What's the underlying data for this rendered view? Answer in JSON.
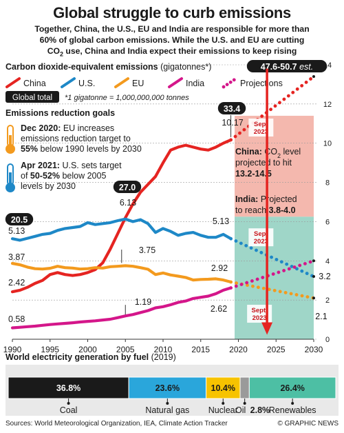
{
  "header": {
    "title": "Global struggle to curb emissions",
    "subtitle_l1": "Together, China, the U.S., EU and India are responsible for more than",
    "subtitle_l2": "60% of global carbon emissions. While the U.S. and EU are cutting",
    "subtitle_l3a": "CO",
    "subtitle_l3sub": "2",
    "subtitle_l3b": " use, China and India expect their emissions to keep rising"
  },
  "colors": {
    "china": "#e52421",
    "us": "#1e88c7",
    "eu": "#f39a1e",
    "india": "#d4168a",
    "china_band": "#f4b8ae",
    "india_band": "#9fd6c8",
    "coal": "#1a1a1a",
    "gas": "#2aa6db",
    "nuclear": "#f7c300",
    "oil": "#9a9a9a",
    "renew": "#4dbfa4"
  },
  "chart_data": [
    {
      "type": "line",
      "title": "Carbon dioxide-equivalent emissions",
      "title_unit": "(gigatonnes*)",
      "footnote": "*1 gigatonne = 1,000,000,000 tonnes",
      "global_total_label": "Global total",
      "xlim": [
        1990,
        2030
      ],
      "ylim": [
        0,
        14
      ],
      "x_ticks": [
        1990,
        1995,
        2000,
        2005,
        2010,
        2015,
        2020,
        2025,
        2030
      ],
      "y_ticks": [
        0,
        2,
        4,
        6,
        8,
        10,
        12,
        14
      ],
      "legend": {
        "placement": "top-left",
        "entries": [
          "China",
          "U.S.",
          "EU",
          "India",
          "Projections"
        ]
      },
      "series": [
        {
          "name": "China",
          "x": [
            1990,
            1991,
            1992,
            1993,
            1994,
            1995,
            1996,
            1997,
            1998,
            1999,
            2000,
            2001,
            2002,
            2003,
            2004,
            2005,
            2006,
            2007,
            2008,
            2009,
            2010,
            2011,
            2012,
            2013,
            2014,
            2015,
            2016,
            2017,
            2018,
            2019
          ],
          "values": [
            2.42,
            2.5,
            2.65,
            2.85,
            3.0,
            3.3,
            3.4,
            3.3,
            3.25,
            3.3,
            3.4,
            3.55,
            3.9,
            4.6,
            5.4,
            6.2,
            6.9,
            7.5,
            7.9,
            8.3,
            9.0,
            9.65,
            9.8,
            9.9,
            9.8,
            9.7,
            9.65,
            9.8,
            10.0,
            10.17
          ],
          "projection": {
            "x": [
              2019,
              2030
            ],
            "values": [
              10.17,
              13.4
            ]
          }
        },
        {
          "name": "U.S.",
          "x": [
            1990,
            1991,
            1992,
            1993,
            1994,
            1995,
            1996,
            1997,
            1998,
            1999,
            2000,
            2001,
            2002,
            2003,
            2004,
            2005,
            2006,
            2007,
            2008,
            2009,
            2010,
            2011,
            2012,
            2013,
            2014,
            2015,
            2016,
            2017,
            2018,
            2019
          ],
          "values": [
            5.13,
            5.05,
            5.15,
            5.25,
            5.35,
            5.4,
            5.55,
            5.65,
            5.7,
            5.75,
            5.95,
            5.85,
            5.9,
            5.95,
            6.05,
            6.13,
            6.0,
            6.1,
            5.9,
            5.45,
            5.65,
            5.5,
            5.3,
            5.4,
            5.45,
            5.3,
            5.2,
            5.2,
            5.35,
            5.13
          ],
          "projection": {
            "x": [
              2019,
              2030
            ],
            "values": [
              5.13,
              3.2
            ]
          }
        },
        {
          "name": "EU",
          "x": [
            1990,
            1991,
            1992,
            1993,
            1994,
            1995,
            1996,
            1997,
            1998,
            1999,
            2000,
            2001,
            2002,
            2003,
            2004,
            2005,
            2006,
            2007,
            2008,
            2009,
            2010,
            2011,
            2012,
            2013,
            2014,
            2015,
            2016,
            2017,
            2018,
            2019
          ],
          "values": [
            3.87,
            3.8,
            3.68,
            3.6,
            3.58,
            3.62,
            3.72,
            3.65,
            3.63,
            3.58,
            3.6,
            3.65,
            3.63,
            3.7,
            3.72,
            3.75,
            3.72,
            3.65,
            3.57,
            3.3,
            3.38,
            3.28,
            3.22,
            3.15,
            3.02,
            3.05,
            3.06,
            3.08,
            3.02,
            2.92
          ],
          "projection": {
            "x": [
              2019,
              2030
            ],
            "values": [
              2.92,
              2.1
            ]
          }
        },
        {
          "name": "India",
          "x": [
            1990,
            1991,
            1992,
            1993,
            1994,
            1995,
            1996,
            1997,
            1998,
            1999,
            2000,
            2001,
            2002,
            2003,
            2004,
            2005,
            2006,
            2007,
            2008,
            2009,
            2010,
            2011,
            2012,
            2013,
            2014,
            2015,
            2016,
            2017,
            2018,
            2019
          ],
          "values": [
            0.58,
            0.61,
            0.64,
            0.67,
            0.71,
            0.75,
            0.78,
            0.81,
            0.84,
            0.88,
            0.91,
            0.94,
            0.98,
            1.02,
            1.1,
            1.19,
            1.26,
            1.36,
            1.46,
            1.6,
            1.66,
            1.76,
            1.88,
            1.95,
            2.08,
            2.14,
            2.2,
            2.32,
            2.5,
            2.62
          ],
          "projection": {
            "x": [
              2019,
              2030
            ],
            "values": [
              2.62,
              4.0
            ]
          }
        }
      ],
      "global_totals": [
        {
          "year": 1990,
          "value": "20.5"
        },
        {
          "year": 2005,
          "value": "27.0"
        },
        {
          "year": 2019,
          "value": "33.4"
        },
        {
          "year": 2030,
          "value": "47.6-50.7",
          "suffix": "est."
        }
      ],
      "point_labels": [
        {
          "series": "China",
          "year": 1990,
          "text": "2.42"
        },
        {
          "series": "China",
          "year": 2019,
          "text": "10.17"
        },
        {
          "series": "U.S.",
          "year": 1990,
          "text": "5.13"
        },
        {
          "series": "U.S.",
          "year": 2005,
          "text": "6.13"
        },
        {
          "series": "U.S.",
          "year": 2019,
          "text": "5.13"
        },
        {
          "series": "U.S.",
          "year": 2030,
          "text": "3.2"
        },
        {
          "series": "EU",
          "year": 1990,
          "text": "3.87"
        },
        {
          "series": "EU",
          "year": 2005,
          "text": "3.75"
        },
        {
          "series": "EU",
          "year": 2019,
          "text": "2.92"
        },
        {
          "series": "EU",
          "year": 2030,
          "text": "2.1"
        },
        {
          "series": "India",
          "year": 1990,
          "text": "0.58"
        },
        {
          "series": "India",
          "year": 2005,
          "text": "1.19"
        },
        {
          "series": "India",
          "year": 2019,
          "text": "2.62"
        }
      ],
      "projection_bands": [
        {
          "name": "China",
          "x": [
            2019.5,
            2030
          ],
          "y": [
            6.25,
            11.4
          ]
        },
        {
          "name": "India",
          "x": [
            2019.5,
            2030
          ],
          "y": [
            0,
            6.25
          ]
        }
      ],
      "arrow": {
        "year": 2023.8,
        "from": 13.8,
        "to": 0.3
      },
      "sept_tags": [
        {
          "year": 2023.0,
          "y": 10.8,
          "lines": [
            "Sept",
            "2023"
          ]
        },
        {
          "year": 2023.0,
          "y": 5.2,
          "lines": [
            "Sept",
            "2023"
          ]
        },
        {
          "year": 2022.8,
          "y": 1.3,
          "lines": [
            "Sept.",
            "2023"
          ]
        }
      ],
      "annotations": {
        "china_a": "China:",
        "china_b": " CO",
        "china_sub": "2",
        "china_c": " level",
        "china_l2": "projected to hit",
        "china_l3": "13.2-14.5",
        "india_a": "India:",
        "india_b": " Projected",
        "india_l2a": "to reach ",
        "india_l2b": "3.8-4.0"
      },
      "goals": {
        "heading": "Emissions reduction goals",
        "eu_l1a": "Dec 2020:",
        "eu_l1b": " EU increases",
        "eu_l2": "emissions reduction target to",
        "eu_l3a": "55%",
        "eu_l3b": " below 1990 levels by 2030",
        "us_l1a": "Apr 2021:",
        "us_l1b": " U.S. sets target",
        "us_l2a": "of ",
        "us_l2b": "50-52%",
        "us_l2c": " below 2005",
        "us_l3": "levels by 2030"
      }
    },
    {
      "type": "bar",
      "title": "World electricity generation by fuel",
      "title_year": "(2019)",
      "stacked": true,
      "categories": [
        "Coal",
        "Natural gas",
        "Nuclear",
        "Oil",
        "Renewables"
      ],
      "values": [
        36.8,
        23.6,
        10.4,
        2.8,
        26.4
      ],
      "value_labels": [
        "36.8%",
        "23.6%",
        "10.4%",
        "2.8%",
        "26.4%"
      ]
    }
  ],
  "footer": {
    "sources": "Sources: World Meteorological Organization, IEA, Climate Action Tracker",
    "credit": "© GRAPHIC NEWS"
  }
}
